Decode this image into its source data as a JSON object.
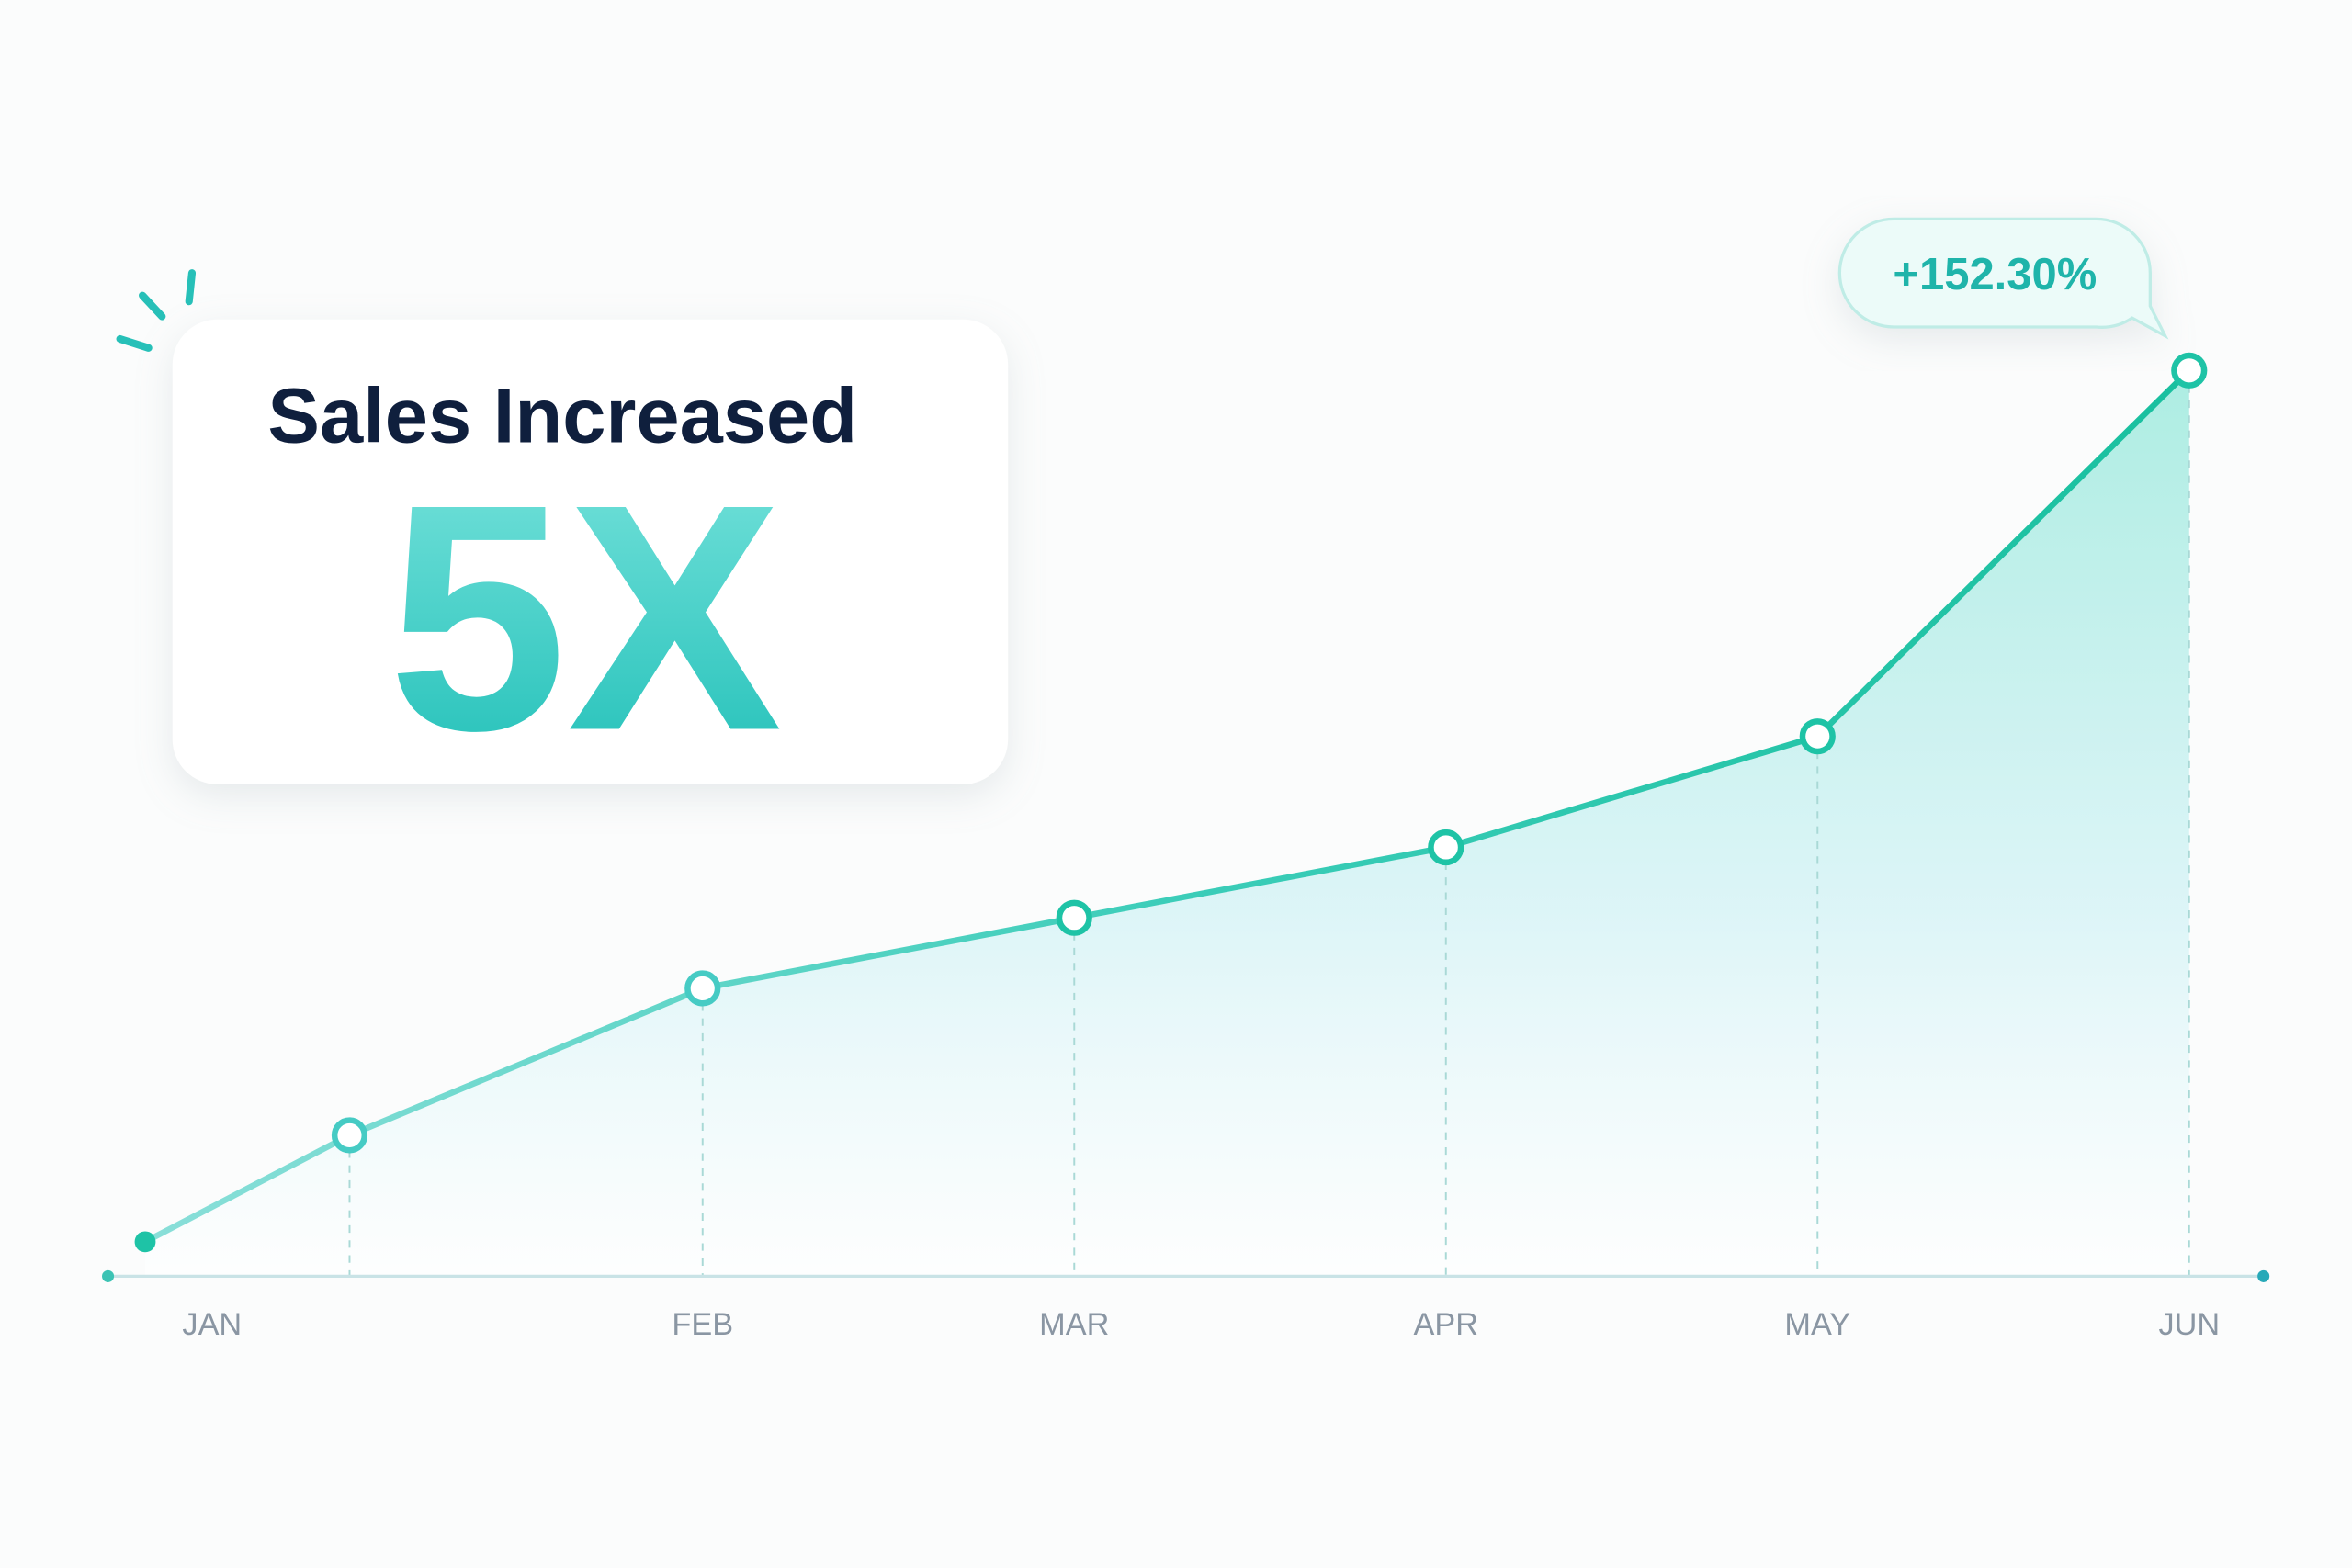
{
  "chart_data": {
    "type": "line",
    "title": "Sales Increased",
    "headline": "5X",
    "annotation": "+152.30%",
    "x": [
      0.5,
      1.05,
      2,
      3,
      4,
      5,
      6
    ],
    "values": [
      23,
      94,
      192,
      239,
      286,
      360,
      604
    ],
    "color": "#1ec3a6",
    "xlim": [
      0.4,
      6.2
    ],
    "ylim": [
      0,
      650
    ],
    "xticks": [
      {
        "value": 0.68,
        "label": "JAN"
      },
      {
        "value": 2,
        "label": "FEB"
      },
      {
        "value": 3,
        "label": "MAR"
      },
      {
        "value": 4,
        "label": "APR"
      },
      {
        "value": 5,
        "label": "MAY"
      },
      {
        "value": 6,
        "label": "JUN"
      }
    ]
  }
}
